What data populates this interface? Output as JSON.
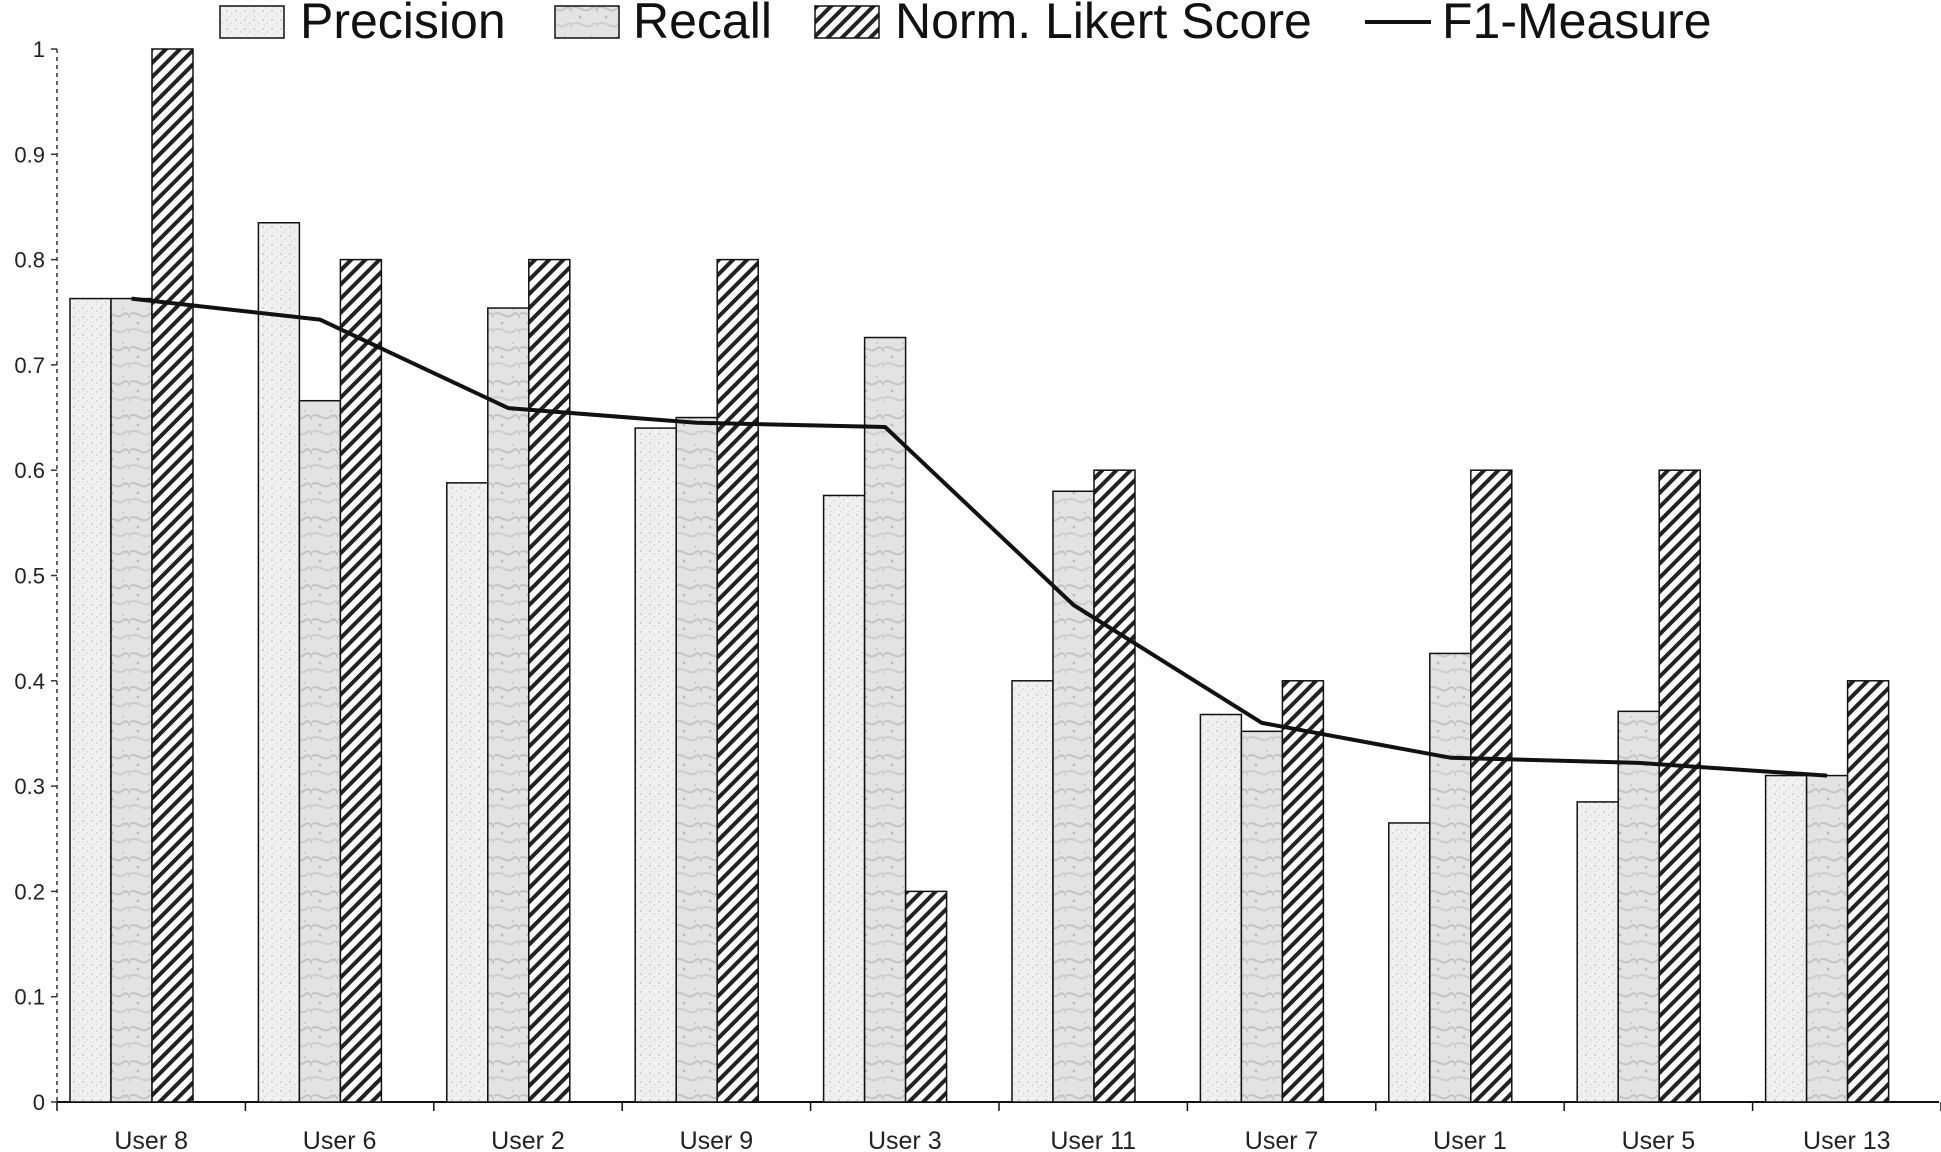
{
  "chart_data": {
    "type": "bar",
    "categories": [
      "User 8",
      "User 6",
      "User 2",
      "User 9",
      "User 3",
      "User 11",
      "User 7",
      "User 1",
      "User 5",
      "User 13"
    ],
    "series": [
      {
        "name": "Precision",
        "kind": "bar",
        "pattern": "speckle",
        "values": [
          0.763,
          0.835,
          0.588,
          0.64,
          0.576,
          0.4,
          0.368,
          0.265,
          0.285,
          0.31
        ]
      },
      {
        "name": "Recall",
        "kind": "bar",
        "pattern": "marble",
        "values": [
          0.763,
          0.666,
          0.754,
          0.65,
          0.726,
          0.58,
          0.352,
          0.426,
          0.371,
          0.31
        ]
      },
      {
        "name": "Norm. Likert Score",
        "kind": "bar",
        "pattern": "diagonal-hatch",
        "values": [
          1.0,
          0.8,
          0.8,
          0.8,
          0.2,
          0.6,
          0.4,
          0.6,
          0.6,
          0.4
        ]
      },
      {
        "name": "F1-Measure",
        "kind": "line",
        "values": [
          0.763,
          0.743,
          0.659,
          0.645,
          0.641,
          0.472,
          0.36,
          0.327,
          0.322,
          0.31
        ]
      }
    ],
    "ylim": [
      0,
      1
    ],
    "yticks": [
      "0",
      "0.1",
      "0.2",
      "0.3",
      "0.4",
      "0.5",
      "0.6",
      "0.7",
      "0.8",
      "0.9",
      "1"
    ],
    "legend_position": "top",
    "grid": false,
    "colors": {
      "line": "#111111",
      "bar_stroke": "#111111",
      "hatch": "#222222",
      "fill_light": "#ececec"
    }
  }
}
